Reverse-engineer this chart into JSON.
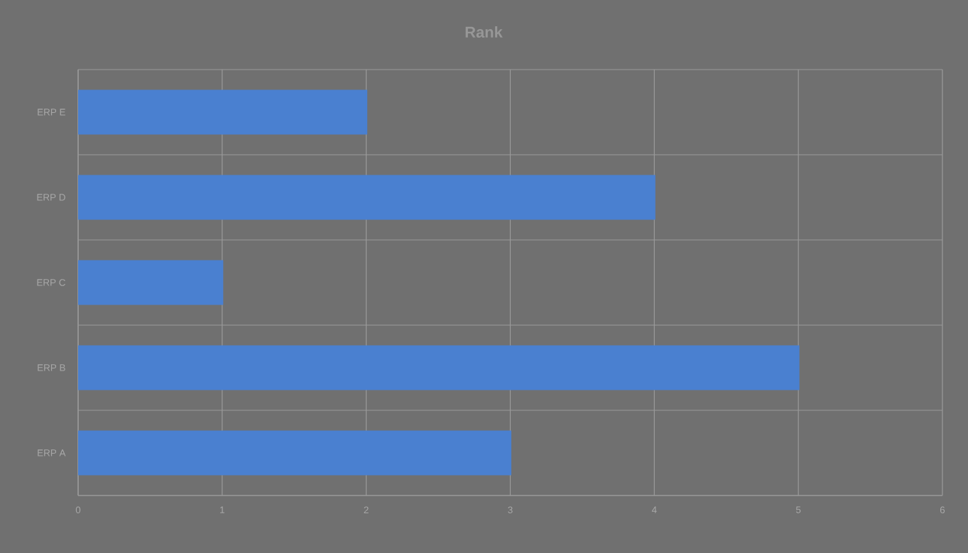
{
  "chart_data": {
    "type": "bar",
    "orientation": "horizontal",
    "title": "Rank",
    "categories": [
      "ERP E",
      "ERP D",
      "ERP C",
      "ERP B",
      "ERP A"
    ],
    "values": [
      2,
      4,
      1,
      5,
      3
    ],
    "color": "#4a80d0",
    "xlim": [
      0,
      6
    ],
    "xticks": [
      0,
      1,
      2,
      3,
      4,
      5,
      6
    ],
    "grid": true
  }
}
